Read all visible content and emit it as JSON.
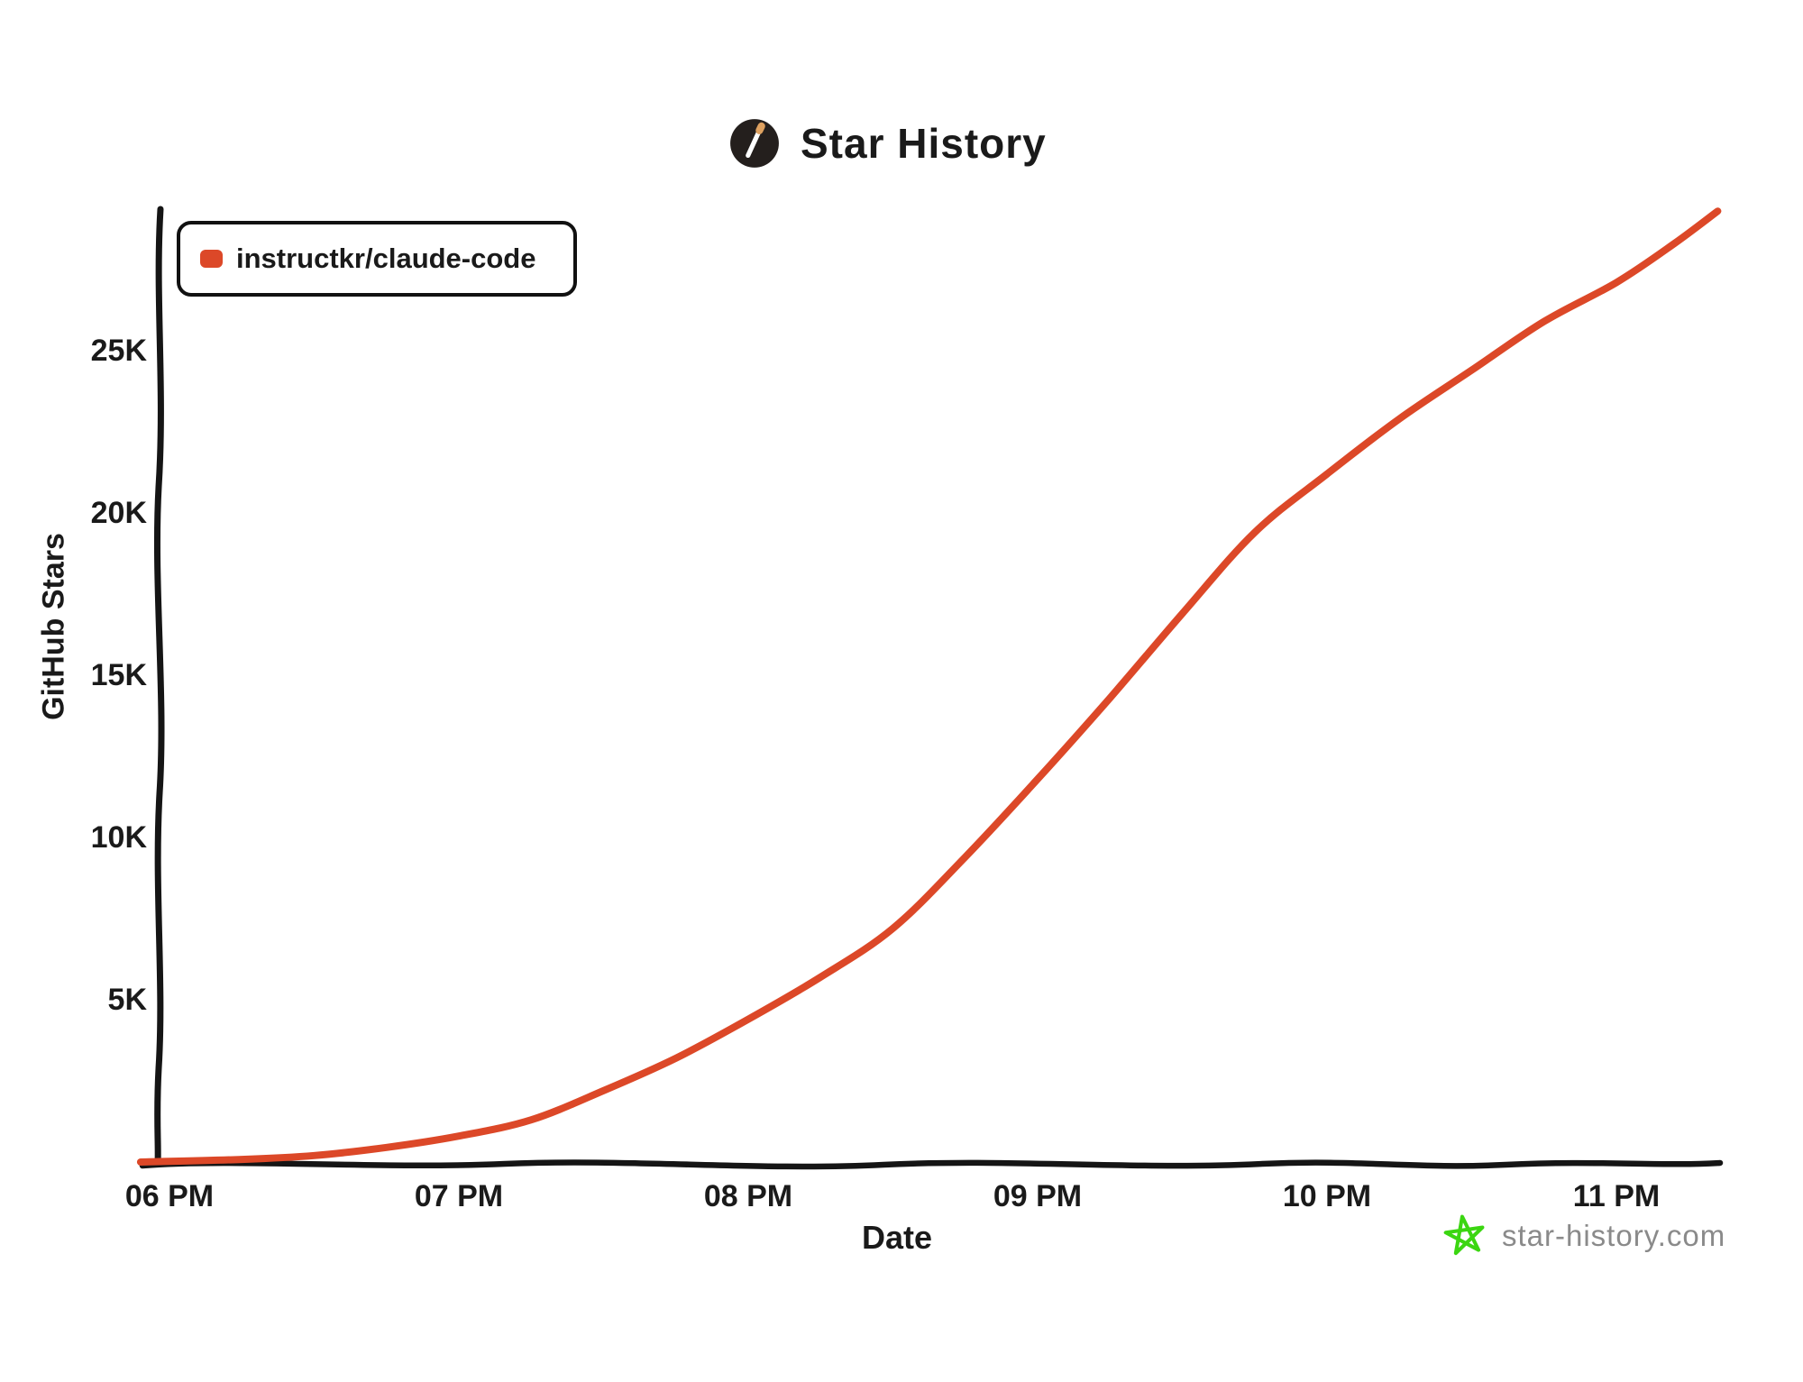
{
  "header": {
    "title": "Star History",
    "logo": "star-history-wand-icon"
  },
  "legend": {
    "items": [
      {
        "label": "instructkr/claude-code",
        "color": "#dc4828"
      }
    ]
  },
  "axes": {
    "x_label": "Date",
    "y_label": "GitHub Stars"
  },
  "footer": {
    "site_label": "star-history.com",
    "star_icon": "green-star-icon"
  },
  "colors": {
    "series_red": "#dc4828",
    "axis_black": "#151515",
    "footer_gray": "#8a8a8a",
    "star_green": "#3bd611",
    "logo_circle": "#241f1d",
    "logo_wand": "#ffffff",
    "logo_tip": "#dea160"
  },
  "chart_data": {
    "type": "line",
    "title": "Star History",
    "xlabel": "Date",
    "ylabel": "GitHub Stars",
    "grid": false,
    "legend_position": "top-left",
    "ylim": [
      0,
      29500
    ],
    "xlim_hours": [
      18.0,
      23.4
    ],
    "x_ticks": [
      {
        "label": "06 PM",
        "hour": 18
      },
      {
        "label": "07 PM",
        "hour": 19
      },
      {
        "label": "08 PM",
        "hour": 20
      },
      {
        "label": "09 PM",
        "hour": 21
      },
      {
        "label": "10 PM",
        "hour": 22
      },
      {
        "label": "11 PM",
        "hour": 23
      }
    ],
    "y_ticks": [
      {
        "label": "5K",
        "value": 5000
      },
      {
        "label": "10K",
        "value": 10000
      },
      {
        "label": "15K",
        "value": 15000
      },
      {
        "label": "20K",
        "value": 20000
      },
      {
        "label": "25K",
        "value": 25000
      }
    ],
    "series": [
      {
        "name": "instructkr/claude-code",
        "color": "#dc4828",
        "points_hour_stars": [
          [
            17.9,
            0
          ],
          [
            18.25,
            80
          ],
          [
            18.5,
            200
          ],
          [
            18.75,
            450
          ],
          [
            19.0,
            800
          ],
          [
            19.25,
            1300
          ],
          [
            19.5,
            2200
          ],
          [
            19.75,
            3200
          ],
          [
            20.0,
            4400
          ],
          [
            20.25,
            5700
          ],
          [
            20.5,
            7200
          ],
          [
            20.75,
            9400
          ],
          [
            21.0,
            11800
          ],
          [
            21.25,
            14300
          ],
          [
            21.5,
            16900
          ],
          [
            21.75,
            19400
          ],
          [
            22.0,
            21200
          ],
          [
            22.25,
            22900
          ],
          [
            22.5,
            24400
          ],
          [
            22.75,
            25900
          ],
          [
            23.0,
            27100
          ],
          [
            23.2,
            28300
          ],
          [
            23.35,
            29300
          ]
        ]
      }
    ]
  }
}
